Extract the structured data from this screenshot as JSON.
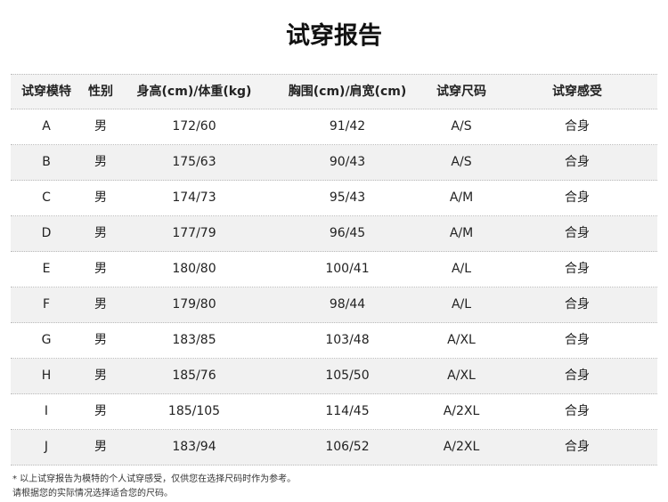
{
  "title": "试穿报告",
  "headers": [
    "试穿模特",
    "性别",
    "身高(cm)/体重(kg)",
    "胸围(cm)/肩宽(cm)",
    "试穿尺码",
    "试穿感受"
  ],
  "rows": [
    [
      "A",
      "男",
      "172/60",
      "91/42",
      "A/S",
      "合身"
    ],
    [
      "B",
      "男",
      "175/63",
      "90/43",
      "A/S",
      "合身"
    ],
    [
      "C",
      "男",
      "174/73",
      "95/43",
      "A/M",
      "合身"
    ],
    [
      "D",
      "男",
      "177/79",
      "96/45",
      "A/M",
      "合身"
    ],
    [
      "E",
      "男",
      "180/80",
      "100/41",
      "A/L",
      "合身"
    ],
    [
      "F",
      "男",
      "179/80",
      "98/44",
      "A/L",
      "合身"
    ],
    [
      "G",
      "男",
      "183/85",
      "103/48",
      "A/XL",
      "合身"
    ],
    [
      "H",
      "男",
      "185/76",
      "105/50",
      "A/XL",
      "合身"
    ],
    [
      "I",
      "男",
      "185/105",
      "114/45",
      "A/2XL",
      "合身"
    ],
    [
      "J",
      "男",
      "183/94",
      "106/52",
      "A/2XL",
      "合身"
    ]
  ],
  "notes": [
    "* 以上试穿报告为模特的个人试穿感受，仅供您在选择尺码时作为参考。",
    "请根据您的实际情况选择适合您的尺码。"
  ]
}
